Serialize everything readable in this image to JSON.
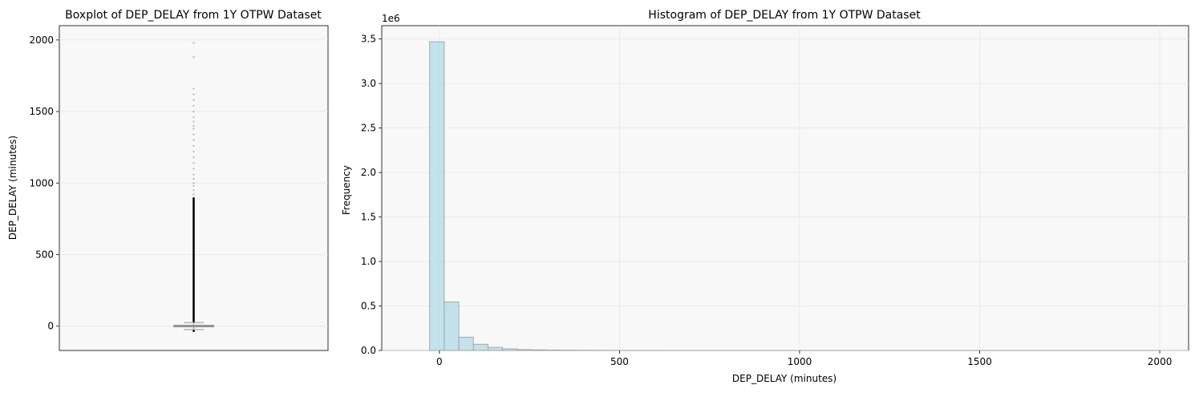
{
  "chart_data": [
    {
      "type": "box",
      "title": "Boxplot of DEP_DELAY from 1Y OTPW Dataset",
      "xlabel": "",
      "ylabel": "DEP_DELAY (minutes)",
      "ylim": [
        -170,
        2100
      ],
      "yticks": [
        0,
        500,
        1000,
        1500,
        2000
      ],
      "grid": true,
      "box": {
        "median": 0,
        "q1": -5,
        "q3": 7,
        "whisker_low": -24,
        "whisker_high": 25,
        "outlier_min": -40,
        "outlier_dense_max": 900,
        "outlier_sparse": [
          920,
          950,
          980,
          1000,
          1030,
          1060,
          1100,
          1140,
          1180,
          1220,
          1260,
          1300,
          1340,
          1380,
          1400,
          1430,
          1460,
          1500,
          1540,
          1580,
          1620,
          1660,
          1880,
          1980
        ]
      },
      "colors": {
        "box": "#a0a0a0",
        "points": "#000000",
        "background": "#f8f8f8"
      }
    },
    {
      "type": "bar",
      "title": "Histogram of DEP_DELAY from 1Y OTPW Dataset",
      "xlabel": "DEP_DELAY (minutes)",
      "ylabel": "Frequency",
      "y_multiplier_label": "1e6",
      "xlim": [
        -160,
        2080
      ],
      "ylim": [
        0,
        3.65
      ],
      "xticks": [
        0,
        500,
        1000,
        1500,
        2000
      ],
      "yticks": [
        0.0,
        0.5,
        1.0,
        1.5,
        2.0,
        2.5,
        3.0,
        3.5
      ],
      "ytick_labels": [
        "0.0",
        "0.5",
        "1.0",
        "1.5",
        "2.0",
        "2.5",
        "3.0",
        "3.5"
      ],
      "grid": true,
      "bin_start": -27,
      "bin_width": 40.5,
      "values": [
        3.47,
        0.545,
        0.15,
        0.07,
        0.035,
        0.018,
        0.01,
        0.007,
        0.005,
        0.004,
        0.003,
        0.002,
        0.0015,
        0.001,
        0.0008,
        0.0006,
        0.0005,
        0.0004,
        0.0003,
        0.00025,
        0.0002,
        0.00015,
        0.0001,
        8e-05,
        6e-05,
        5e-05,
        4e-05,
        3e-05,
        2e-05,
        2e-05,
        1e-05,
        1e-05,
        1e-05,
        5e-06,
        5e-06,
        4e-06,
        3e-06,
        2e-06,
        2e-06,
        1e-06,
        1e-06,
        1e-06,
        1e-06,
        1e-06,
        1e-06,
        1e-06,
        1e-06,
        1e-06,
        1e-06,
        1e-06
      ],
      "colors": {
        "bar": "#add8e6",
        "edge": "#a0a0a0",
        "background": "#f8f8f8"
      }
    }
  ]
}
